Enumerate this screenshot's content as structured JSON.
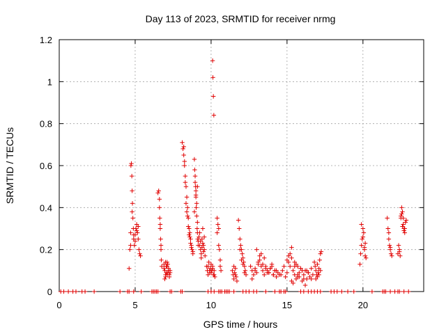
{
  "chart_data": {
    "type": "scatter",
    "title": "Day 113 of 2023, SRMTID for receiver nrmg",
    "xlabel": "GPS time / hours",
    "ylabel": "SRMTID / TECUs",
    "xlim": [
      0,
      24
    ],
    "ylim": [
      0,
      1.2
    ],
    "xticks": [
      0,
      5,
      10,
      15,
      20
    ],
    "xtick_labels": [
      "0",
      "5",
      "10",
      "15",
      "20"
    ],
    "yticks": [
      0,
      0.2,
      0.4,
      0.6,
      0.8,
      1,
      1.2
    ],
    "ytick_labels": [
      "0",
      "0.2",
      "0.4",
      "0.6",
      "0.8",
      "1",
      "1.2"
    ],
    "grid": true,
    "marker": "plus",
    "color": "#e00000",
    "series": [
      {
        "name": "nrmg",
        "x": [
          0.1,
          0.3,
          0.6,
          0.9,
          1.1,
          1.5,
          1.7,
          2.3,
          4.0,
          4.5,
          4.6,
          4.9,
          5.4,
          6.1,
          6.2,
          6.3,
          6.4,
          6.5,
          7.3,
          7.4,
          8.0,
          8.1,
          9.8,
          10.0,
          10.2,
          10.5,
          10.6,
          10.7,
          10.9,
          11.0,
          11.1,
          11.2,
          11.5,
          12.1,
          12.3,
          12.5,
          12.8,
          13.0,
          13.6,
          14.2,
          14.5,
          14.6,
          14.8,
          14.9,
          15.9,
          16.1,
          16.4,
          16.6,
          16.8,
          17.0,
          17.2,
          17.9,
          18.1,
          18.3,
          18.6,
          19.0,
          19.4,
          20.6,
          21.3,
          21.4,
          21.5,
          21.8,
          22.1,
          22.3,
          22.4,
          22.7,
          23.0,
          4.6,
          4.65,
          4.7,
          4.72,
          4.75,
          4.78,
          4.8,
          4.82,
          4.85,
          4.88,
          4.9,
          4.95,
          5.0,
          5.05,
          5.1,
          5.15,
          5.2,
          5.25,
          5.3,
          5.35,
          4.7,
          4.8,
          4.9,
          5.0,
          5.1,
          5.2,
          6.5,
          6.55,
          6.6,
          6.62,
          6.65,
          6.68,
          6.7,
          6.72,
          6.75,
          6.6,
          6.65,
          6.7,
          6.9,
          6.95,
          7.0,
          7.05,
          7.1,
          7.15,
          7.2,
          7.25,
          7.3,
          6.95,
          7.05,
          7.15,
          7.25,
          6.9,
          7.0,
          7.1,
          7.2,
          7.3,
          7.0,
          7.1,
          8.1,
          8.15,
          8.2,
          8.25,
          8.3,
          8.35,
          8.4,
          8.45,
          8.5,
          8.55,
          8.6,
          8.65,
          8.7,
          8.75,
          8.8,
          8.25,
          8.35,
          8.45,
          8.55,
          8.65,
          8.2,
          8.3,
          8.4,
          8.5,
          8.6,
          8.7,
          8.8,
          8.9,
          8.92,
          8.95,
          8.98,
          9.0,
          9.02,
          9.05,
          9.08,
          9.1,
          9.12,
          9.15,
          8.95,
          9.0,
          9.05,
          9.1,
          9.15,
          8.9,
          9.0,
          9.1,
          9.2,
          9.25,
          9.3,
          9.35,
          9.4,
          9.45,
          9.5,
          9.55,
          9.6,
          9.3,
          9.4,
          9.5,
          9.25,
          9.35,
          9.45,
          9.55,
          9.7,
          9.75,
          9.8,
          9.85,
          9.9,
          9.95,
          10.0,
          10.05,
          10.1,
          10.15,
          10.2,
          10.25,
          9.8,
          9.9,
          10.0,
          10.1,
          10.2,
          10.1,
          10.12,
          10.15,
          10.18,
          10.4,
          10.45,
          10.5,
          10.55,
          10.6,
          10.65,
          10.4,
          10.5,
          10.6,
          11.4,
          11.45,
          11.5,
          11.55,
          11.6,
          11.65,
          11.7,
          11.5,
          11.6,
          11.8,
          11.85,
          11.9,
          11.95,
          12.0,
          12.05,
          12.1,
          12.15,
          12.2,
          12.25,
          12.3,
          11.9,
          12.0,
          12.1,
          12.2,
          12.6,
          12.7,
          12.8,
          12.9,
          13.0,
          13.1,
          13.2,
          13.3,
          13.4,
          13.5,
          13.6,
          13.7,
          13.8,
          13.9,
          14.0,
          14.1,
          14.2,
          14.3,
          14.4,
          14.5,
          12.7,
          12.9,
          13.1,
          13.3,
          13.5,
          13.7,
          13.9,
          14.1,
          14.3,
          13.0,
          13.2,
          13.4,
          13.6,
          13.8,
          14.0,
          14.2,
          14.6,
          14.7,
          14.8,
          14.9,
          15.0,
          15.1,
          15.2,
          15.3,
          15.4,
          15.5,
          15.6,
          15.7,
          15.8,
          15.9,
          16.0,
          16.1,
          16.2,
          16.3,
          16.4,
          16.5,
          16.6,
          16.7,
          15.0,
          15.2,
          15.4,
          15.6,
          15.8,
          16.0,
          16.2,
          16.4,
          16.6,
          15.1,
          15.3,
          15.5,
          15.7,
          15.9,
          16.1,
          16.3,
          15.3,
          15.5,
          15.7,
          16.8,
          16.85,
          16.9,
          16.95,
          17.0,
          17.05,
          17.1,
          17.15,
          17.2,
          17.25,
          16.9,
          17.0,
          17.1,
          17.2,
          19.8,
          19.85,
          19.9,
          19.95,
          20.0,
          20.05,
          20.1,
          20.15,
          20.2,
          19.9,
          20.0,
          20.1,
          20.15,
          21.6,
          21.65,
          21.7,
          21.75,
          21.8,
          21.85,
          21.9,
          21.7,
          21.8,
          22.3,
          22.35,
          22.4,
          22.45,
          22.5,
          22.55,
          22.6,
          22.65,
          22.7,
          22.75,
          22.8,
          22.85,
          22.5,
          22.6,
          22.7,
          22.4,
          22.55,
          22.65,
          22.75
        ],
        "y": [
          0,
          0,
          0,
          0,
          0,
          0,
          0,
          0,
          0,
          0,
          0,
          0,
          0,
          0,
          0,
          0,
          0,
          0,
          0,
          0,
          0,
          0,
          0,
          0,
          0,
          0,
          0,
          0,
          0,
          0,
          0,
          0,
          0,
          0,
          0,
          0,
          0,
          0,
          0,
          0,
          0,
          0,
          0,
          0,
          0,
          0,
          0,
          0,
          0,
          0,
          0,
          0,
          0,
          0,
          0,
          0,
          0,
          0,
          0,
          0,
          0,
          0,
          0,
          0,
          0,
          0,
          0,
          0.11,
          0.2,
          0.28,
          0.6,
          0.61,
          0.55,
          0.48,
          0.42,
          0.35,
          0.3,
          0.25,
          0.22,
          0.27,
          0.3,
          0.32,
          0.28,
          0.25,
          0.2,
          0.18,
          0.17,
          0.22,
          0.38,
          0.27,
          0.24,
          0.29,
          0.31,
          0.47,
          0.48,
          0.4,
          0.35,
          0.3,
          0.25,
          0.2,
          0.15,
          0.12,
          0.44,
          0.32,
          0.22,
          0.13,
          0.1,
          0.08,
          0.12,
          0.14,
          0.09,
          0.11,
          0.07,
          0.1,
          0.06,
          0.09,
          0.13,
          0.08,
          0.11,
          0.07,
          0.12,
          0.1,
          0.09,
          0.14,
          0.08,
          0.71,
          0.68,
          0.65,
          0.6,
          0.55,
          0.5,
          0.45,
          0.4,
          0.35,
          0.3,
          0.28,
          0.25,
          0.22,
          0.2,
          0.18,
          0.62,
          0.42,
          0.36,
          0.27,
          0.23,
          0.69,
          0.52,
          0.38,
          0.31,
          0.26,
          0.21,
          0.19,
          0.63,
          0.58,
          0.52,
          0.5,
          0.45,
          0.4,
          0.36,
          0.3,
          0.28,
          0.25,
          0.22,
          0.55,
          0.48,
          0.42,
          0.33,
          0.24,
          0.38,
          0.46,
          0.5,
          0.26,
          0.22,
          0.2,
          0.18,
          0.25,
          0.3,
          0.22,
          0.2,
          0.17,
          0.24,
          0.21,
          0.19,
          0.28,
          0.16,
          0.23,
          0.26,
          0.12,
          0.1,
          0.08,
          0.14,
          0.09,
          0.11,
          0.13,
          0.1,
          0.12,
          0.08,
          0.1,
          0.07,
          0.12,
          0.1,
          0.09,
          0.11,
          0.08,
          1.1,
          1.02,
          0.93,
          0.84,
          0.35,
          0.32,
          0.3,
          0.2,
          0.15,
          0.1,
          0.28,
          0.22,
          0.12,
          0.1,
          0.08,
          0.06,
          0.09,
          0.11,
          0.07,
          0.05,
          0.12,
          0.08,
          0.34,
          0.3,
          0.25,
          0.22,
          0.2,
          0.18,
          0.16,
          0.14,
          0.12,
          0.1,
          0.08,
          0.2,
          0.15,
          0.13,
          0.09,
          0.12,
          0.1,
          0.08,
          0.11,
          0.09,
          0.13,
          0.15,
          0.18,
          0.1,
          0.08,
          0.12,
          0.1,
          0.09,
          0.11,
          0.13,
          0.08,
          0.1,
          0.07,
          0.09,
          0.08,
          0.06,
          0.1,
          0.14,
          0.12,
          0.16,
          0.09,
          0.11,
          0.08,
          0.1,
          0.2,
          0.17,
          0.13,
          0.11,
          0.09,
          0.12,
          0.1,
          0.08,
          0.1,
          0.12,
          0.07,
          0.09,
          0.14,
          0.18,
          0.21,
          0.1,
          0.08,
          0.06,
          0.12,
          0.09,
          0.11,
          0.05,
          0.08,
          0.1,
          0.06,
          0.09,
          0.07,
          0.11,
          0.08,
          0.15,
          0.12,
          0.04,
          0.13,
          0.07,
          0.1,
          0.03,
          0.09,
          0.06,
          0.17,
          0.05,
          0.14,
          0.08,
          0.11,
          0.06,
          0.1,
          0.16,
          0.12,
          0.07,
          0.14,
          0.12,
          0.1,
          0.08,
          0.07,
          0.09,
          0.11,
          0.15,
          0.18,
          0.19,
          0.06,
          0.13,
          0.08,
          0.1,
          0.13,
          0.18,
          0.22,
          0.25,
          0.3,
          0.28,
          0.21,
          0.17,
          0.16,
          0.32,
          0.26,
          0.2,
          0.23,
          0.35,
          0.3,
          0.25,
          0.22,
          0.2,
          0.18,
          0.17,
          0.28,
          0.21,
          0.18,
          0.22,
          0.2,
          0.17,
          0.35,
          0.4,
          0.38,
          0.32,
          0.3,
          0.28,
          0.33,
          0.34,
          0.36,
          0.31,
          0.29,
          0.19,
          0.37,
          0.35,
          0.3
        ]
      }
    ]
  }
}
